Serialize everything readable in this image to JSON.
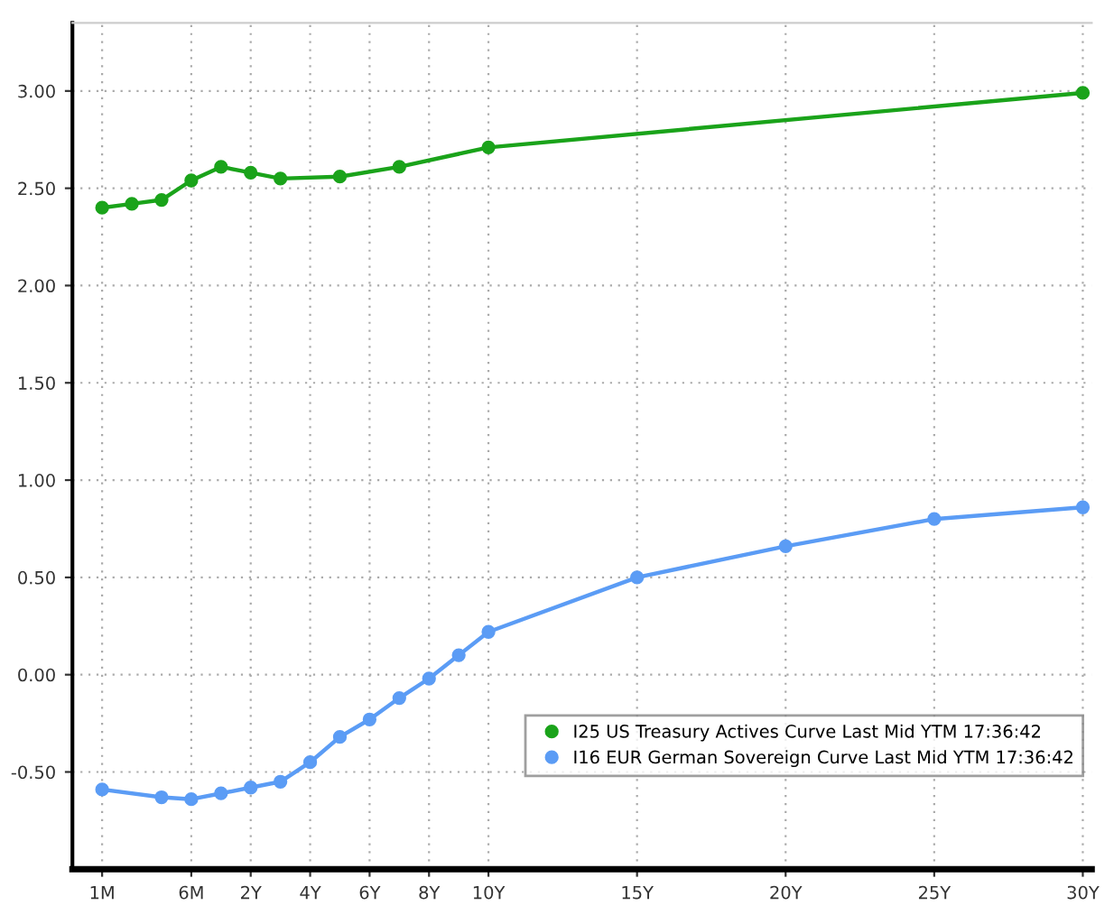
{
  "chart_data": {
    "type": "line",
    "categories": [
      "1M",
      null,
      null,
      "6M",
      null,
      "2Y",
      null,
      "4Y",
      null,
      "6Y",
      null,
      "8Y",
      null,
      "10Y",
      null,
      null,
      null,
      null,
      "15Y",
      null,
      null,
      null,
      null,
      "20Y",
      null,
      null,
      null,
      null,
      "25Y",
      null,
      null,
      null,
      null,
      "30Y"
    ],
    "series": [
      {
        "name": "I25 US Treasury Actives Curve Last Mid YTM 17:36:42",
        "color": "#1aa31a",
        "values": [
          2.4,
          2.42,
          2.44,
          2.54,
          2.61,
          2.58,
          2.55,
          null,
          2.56,
          null,
          2.61,
          null,
          null,
          2.71,
          null,
          null,
          null,
          null,
          null,
          null,
          null,
          null,
          null,
          null,
          null,
          null,
          null,
          null,
          null,
          null,
          null,
          null,
          null,
          2.99
        ]
      },
      {
        "name": "I16 EUR German Sovereign Curve Last Mid YTM 17:36:42",
        "color": "#5b9cf5",
        "values": [
          -0.59,
          null,
          -0.63,
          -0.64,
          -0.61,
          -0.58,
          -0.55,
          -0.45,
          -0.32,
          -0.23,
          -0.12,
          -0.02,
          0.1,
          0.22,
          null,
          null,
          null,
          null,
          0.5,
          null,
          null,
          null,
          null,
          0.66,
          null,
          null,
          null,
          null,
          0.8,
          null,
          null,
          null,
          null,
          0.86
        ]
      }
    ],
    "ylim": [
      -1.0,
      3.35
    ],
    "yticks": [
      {
        "value": -0.5,
        "label": "-0.50"
      },
      {
        "value": 0,
        "label": "0.00"
      },
      {
        "value": 0.5,
        "label": "0.50"
      },
      {
        "value": 1,
        "label": "1.00"
      },
      {
        "value": 1.5,
        "label": "1.50"
      },
      {
        "value": 2,
        "label": "2.00"
      },
      {
        "value": 2.5,
        "label": "2.50"
      },
      {
        "value": 3,
        "label": "3.00"
      }
    ],
    "grid": true,
    "legend": "bottom right",
    "marker": "circle",
    "line_style": "solid"
  }
}
